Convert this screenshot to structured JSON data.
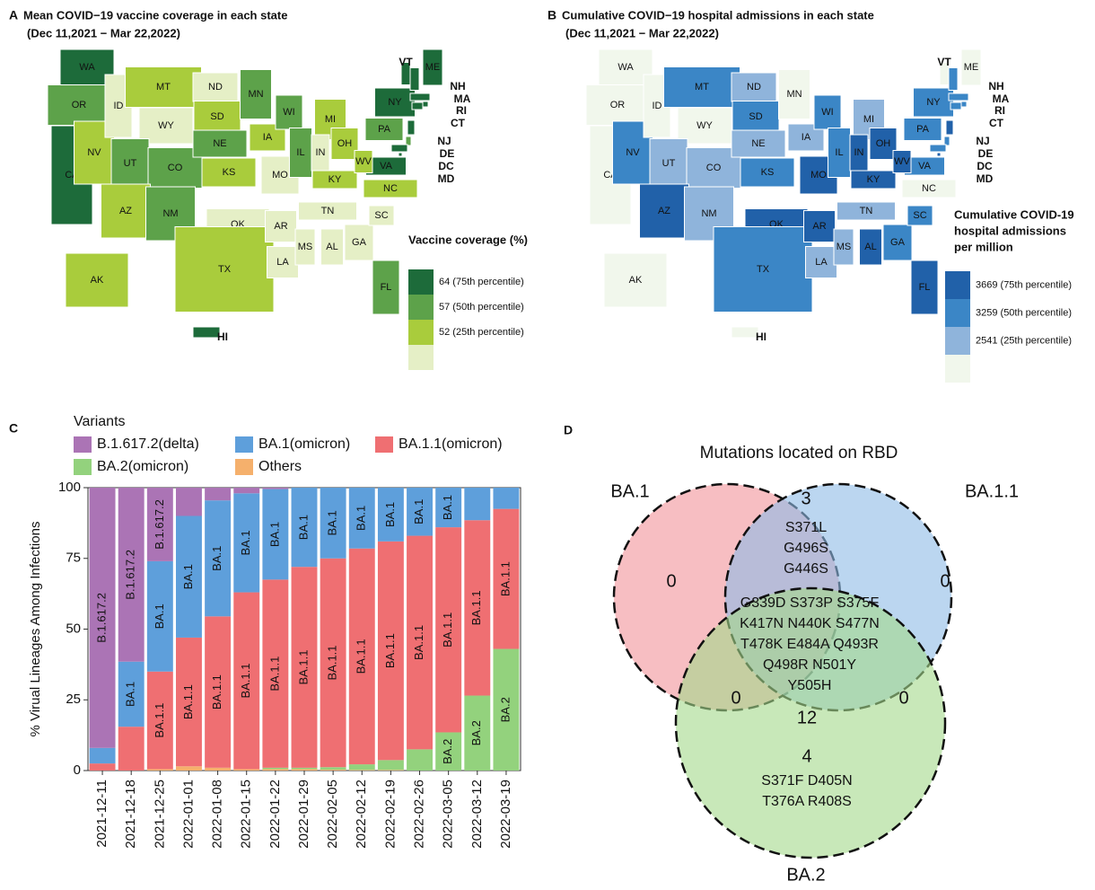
{
  "chart_data": [
    {
      "type": "map",
      "panel": "A",
      "title": "Mean COVID−19 vaccine coverage in each state",
      "subtitle": "(Dec 11,2021 − Mar 22,2022)",
      "states": [
        {
          "name": "WA",
          "color": "#1d6b3a"
        },
        {
          "name": "OR",
          "color": "#5da24a"
        },
        {
          "name": "CA",
          "color": "#1d6b3a"
        },
        {
          "name": "NV",
          "color": "#a9cc3c"
        },
        {
          "name": "ID",
          "color": "#e5efc6"
        },
        {
          "name": "MT",
          "color": "#a9cc3c"
        },
        {
          "name": "WY",
          "color": "#e5efc6"
        },
        {
          "name": "UT",
          "color": "#5da24a"
        },
        {
          "name": "CO",
          "color": "#5da24a"
        },
        {
          "name": "AZ",
          "color": "#a9cc3c"
        },
        {
          "name": "NM",
          "color": "#5da24a"
        },
        {
          "name": "ND",
          "color": "#e5efc6"
        },
        {
          "name": "SD",
          "color": "#a9cc3c"
        },
        {
          "name": "NE",
          "color": "#5da24a"
        },
        {
          "name": "KS",
          "color": "#a9cc3c"
        },
        {
          "name": "OK",
          "color": "#e5efc6"
        },
        {
          "name": "TX",
          "color": "#a9cc3c"
        },
        {
          "name": "MN",
          "color": "#5da24a"
        },
        {
          "name": "IA",
          "color": "#a9cc3c"
        },
        {
          "name": "MO",
          "color": "#e5efc6"
        },
        {
          "name": "AR",
          "color": "#e5efc6"
        },
        {
          "name": "LA",
          "color": "#e5efc6"
        },
        {
          "name": "WI",
          "color": "#5da24a"
        },
        {
          "name": "IL",
          "color": "#5da24a"
        },
        {
          "name": "MI",
          "color": "#a9cc3c"
        },
        {
          "name": "IN",
          "color": "#e5efc6"
        },
        {
          "name": "OH",
          "color": "#a9cc3c"
        },
        {
          "name": "KY",
          "color": "#a9cc3c"
        },
        {
          "name": "TN",
          "color": "#e5efc6"
        },
        {
          "name": "MS",
          "color": "#e5efc6"
        },
        {
          "name": "AL",
          "color": "#e5efc6"
        },
        {
          "name": "GA",
          "color": "#e5efc6"
        },
        {
          "name": "FL",
          "color": "#5da24a"
        },
        {
          "name": "SC",
          "color": "#e5efc6"
        },
        {
          "name": "NC",
          "color": "#a9cc3c"
        },
        {
          "name": "VA",
          "color": "#1d6b3a"
        },
        {
          "name": "WV",
          "color": "#a9cc3c"
        },
        {
          "name": "PA",
          "color": "#5da24a"
        },
        {
          "name": "NY",
          "color": "#1d6b3a"
        },
        {
          "name": "VT",
          "color": "#1d6b3a"
        },
        {
          "name": "ME",
          "color": "#1d6b3a"
        },
        {
          "name": "NH",
          "color": "#1d6b3a"
        },
        {
          "name": "MA",
          "color": "#1d6b3a"
        },
        {
          "name": "RI",
          "color": "#1d6b3a"
        },
        {
          "name": "CT",
          "color": "#1d6b3a"
        },
        {
          "name": "NJ",
          "color": "#1d6b3a"
        },
        {
          "name": "DE",
          "color": "#5da24a"
        },
        {
          "name": "MD",
          "color": "#1d6b3a"
        },
        {
          "name": "DC",
          "color": "#1d6b3a"
        },
        {
          "name": "AK",
          "color": "#a9cc3c"
        },
        {
          "name": "HI",
          "color": "#1d6b3a"
        }
      ],
      "legend": {
        "title": [
          "Vaccine coverage (%)"
        ],
        "labels": [
          "64 (75th percentile)",
          "57 (50th percentile)",
          "52 (25th percentile)"
        ],
        "colors": [
          "#1d6b3a",
          "#5da24a",
          "#a9cc3c",
          "#e5efc6"
        ]
      }
    },
    {
      "type": "map",
      "panel": "B",
      "title": "Cumulative COVID−19 hospital admissions in each state",
      "subtitle": "(Dec 11,2021 − Mar 22,2022)",
      "states": [
        {
          "name": "WA",
          "color": "#f1f7ec"
        },
        {
          "name": "OR",
          "color": "#f1f7ec"
        },
        {
          "name": "CA",
          "color": "#f1f7ec"
        },
        {
          "name": "NV",
          "color": "#3b86c6"
        },
        {
          "name": "ID",
          "color": "#f1f7ec"
        },
        {
          "name": "MT",
          "color": "#3b86c6"
        },
        {
          "name": "WY",
          "color": "#f1f7ec"
        },
        {
          "name": "UT",
          "color": "#8fb4db"
        },
        {
          "name": "CO",
          "color": "#8fb4db"
        },
        {
          "name": "AZ",
          "color": "#2161a9"
        },
        {
          "name": "NM",
          "color": "#8fb4db"
        },
        {
          "name": "ND",
          "color": "#8fb4db"
        },
        {
          "name": "SD",
          "color": "#3b86c6"
        },
        {
          "name": "NE",
          "color": "#8fb4db"
        },
        {
          "name": "KS",
          "color": "#3b86c6"
        },
        {
          "name": "OK",
          "color": "#2161a9"
        },
        {
          "name": "TX",
          "color": "#3b86c6"
        },
        {
          "name": "MN",
          "color": "#f1f7ec"
        },
        {
          "name": "IA",
          "color": "#8fb4db"
        },
        {
          "name": "MO",
          "color": "#2161a9"
        },
        {
          "name": "AR",
          "color": "#2161a9"
        },
        {
          "name": "LA",
          "color": "#8fb4db"
        },
        {
          "name": "WI",
          "color": "#3b86c6"
        },
        {
          "name": "IL",
          "color": "#3b86c6"
        },
        {
          "name": "MI",
          "color": "#8fb4db"
        },
        {
          "name": "IN",
          "color": "#2161a9"
        },
        {
          "name": "OH",
          "color": "#2161a9"
        },
        {
          "name": "KY",
          "color": "#2161a9"
        },
        {
          "name": "TN",
          "color": "#8fb4db"
        },
        {
          "name": "MS",
          "color": "#8fb4db"
        },
        {
          "name": "AL",
          "color": "#2161a9"
        },
        {
          "name": "GA",
          "color": "#3b86c6"
        },
        {
          "name": "FL",
          "color": "#2161a9"
        },
        {
          "name": "SC",
          "color": "#3b86c6"
        },
        {
          "name": "NC",
          "color": "#f1f7ec"
        },
        {
          "name": "VA",
          "color": "#3b86c6"
        },
        {
          "name": "WV",
          "color": "#2161a9"
        },
        {
          "name": "PA",
          "color": "#3b86c6"
        },
        {
          "name": "NY",
          "color": "#3b86c6"
        },
        {
          "name": "VT",
          "color": "#f1f7ec"
        },
        {
          "name": "ME",
          "color": "#f1f7ec"
        },
        {
          "name": "NH",
          "color": "#3b86c6"
        },
        {
          "name": "MA",
          "color": "#3b86c6"
        },
        {
          "name": "RI",
          "color": "#3b86c6"
        },
        {
          "name": "CT",
          "color": "#3b86c6"
        },
        {
          "name": "NJ",
          "color": "#2161a9"
        },
        {
          "name": "DE",
          "color": "#3b86c6"
        },
        {
          "name": "MD",
          "color": "#3b86c6"
        },
        {
          "name": "DC",
          "color": "#2161a9"
        },
        {
          "name": "AK",
          "color": "#f1f7ec"
        },
        {
          "name": "HI",
          "color": "#f1f7ec"
        }
      ],
      "legend": {
        "title": [
          "Cumulative COVID-19",
          "hospital admissions",
          "per million"
        ],
        "labels": [
          "3669 (75th percentile)",
          "3259 (50th percentile)",
          "2541 (25th percentile)"
        ],
        "colors": [
          "#2161a9",
          "#3b86c6",
          "#8fb4db",
          "#f1f7ec"
        ]
      }
    },
    {
      "type": "bar",
      "panel": "C",
      "stacked": true,
      "legend_title": "Variants",
      "ylabel": "% Virual Lineages Among Infections",
      "categories": [
        "2021-12-11",
        "2021-12-18",
        "2021-12-25",
        "2022-01-01",
        "2022-01-08",
        "2022-01-15",
        "2022-01-22",
        "2022-01-29",
        "2022-02-05",
        "2022-02-12",
        "2022-02-19",
        "2022-02-26",
        "2022-03-05",
        "2022-03-12",
        "2022-03-19"
      ],
      "ylim": [
        0,
        100
      ],
      "yticks": [
        0,
        25,
        50,
        75,
        100
      ],
      "series": [
        {
          "name": "B.1.617.2(delta)",
          "color": "#ab74b5",
          "values": [
            92,
            61.5,
            26,
            10,
            4.5,
            2,
            0.5,
            0,
            0,
            0,
            0,
            0,
            0,
            0,
            0
          ],
          "labels": [
            "B.1.617.2",
            "B.1.617.2",
            "B.1.617.2",
            null,
            null,
            null,
            null,
            null,
            null,
            null,
            null,
            null,
            null,
            null,
            null
          ]
        },
        {
          "name": "BA.1(omicron)",
          "color": "#5e9fdb",
          "values": [
            5.5,
            23,
            39,
            43,
            41,
            35,
            32,
            28,
            25,
            21.5,
            19,
            17,
            14,
            11.5,
            7.5
          ],
          "labels": [
            null,
            "BA.1",
            "BA.1",
            "BA.1",
            "BA.1",
            "BA.1",
            "BA.1",
            "BA.1",
            "BA.1",
            "BA.1",
            "BA.1",
            "BA.1",
            "BA.1",
            null,
            null
          ]
        },
        {
          "name": "BA.1.1(omicron)",
          "color": "#ef6f72",
          "values": [
            2.5,
            15.5,
            34.5,
            45.5,
            53.5,
            62.5,
            66.5,
            71,
            73.8,
            76.3,
            77.3,
            75.5,
            72.5,
            62,
            49.5
          ],
          "labels": [
            null,
            null,
            "BA.1.1",
            "BA.1.1",
            "BA.1.1",
            "BA.1.1",
            "BA.1.1",
            "BA.1.1",
            "BA.1.1",
            "BA.1.1",
            "BA.1.1",
            "BA.1.1",
            "BA.1.1",
            "BA.1.1",
            "BA.1.1"
          ]
        },
        {
          "name": "BA.2(omicron)",
          "color": "#93d27d",
          "values": [
            0,
            0,
            0,
            0,
            0,
            0,
            0.5,
            0.5,
            0.9,
            2,
            3.5,
            7.5,
            13.5,
            26.5,
            43
          ],
          "labels": [
            null,
            null,
            null,
            null,
            null,
            null,
            null,
            null,
            null,
            null,
            null,
            null,
            "BA.2",
            "BA.2",
            "BA.2"
          ]
        },
        {
          "name": "Others",
          "color": "#f5b06c",
          "values": [
            0,
            0,
            0.5,
            1.5,
            1,
            0.5,
            0.5,
            0.5,
            0.3,
            0.2,
            0.2,
            0,
            0,
            0,
            0
          ]
        }
      ]
    },
    {
      "type": "venn",
      "panel": "D",
      "title": "Mutations located on RBD",
      "sets": [
        {
          "name": "BA.1",
          "color": "#f2939a"
        },
        {
          "name": "BA.1.1",
          "color": "#8dbbe6"
        },
        {
          "name": "BA.2",
          "color": "#a4d98a"
        }
      ],
      "regions": [
        {
          "count": 0
        },
        {
          "count": 0
        },
        {
          "count": 4,
          "mutations": [
            "S371F D405N",
            "T376A R408S"
          ]
        },
        {
          "count": 3,
          "mutations": [
            "S371L",
            "G496S",
            "G446S"
          ]
        },
        {
          "count": 0
        },
        {
          "count": 0
        },
        {
          "count": 12,
          "mutations": [
            "G339D S373P S375F",
            "K417N N440K S477N",
            "T478K E484A Q493R",
            "Q498R N501Y",
            "Y505H"
          ]
        }
      ]
    }
  ]
}
